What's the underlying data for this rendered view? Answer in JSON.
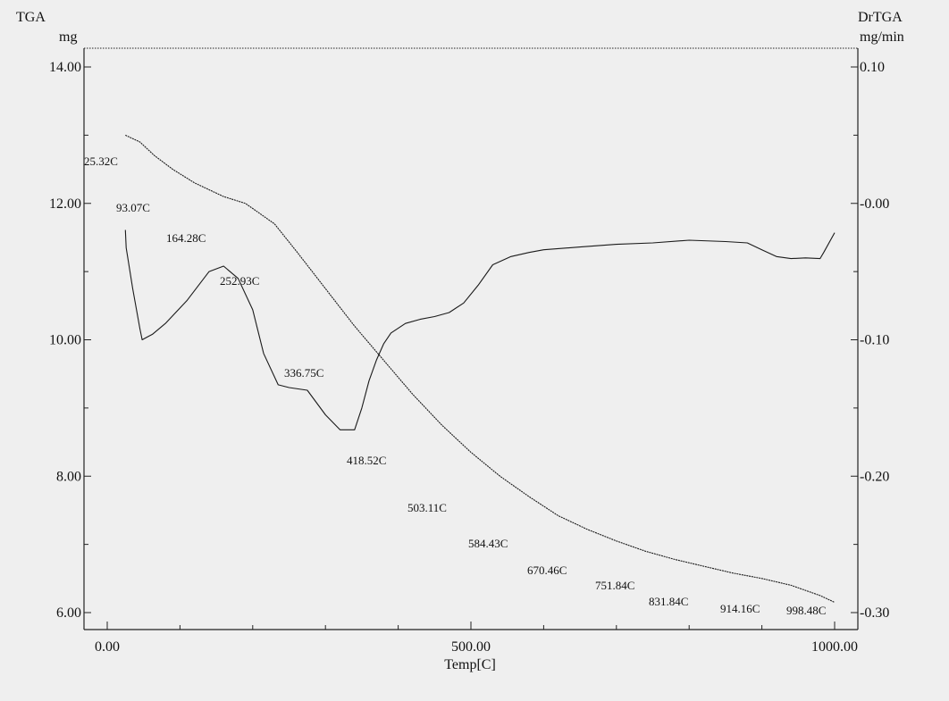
{
  "chart_data": {
    "type": "line",
    "left_axis": {
      "title": "TGA",
      "unit": "mg",
      "ticks": [
        "14.00",
        "12.00",
        "10.00",
        "8.00",
        "6.00"
      ],
      "ylim": [
        6,
        14
      ]
    },
    "right_axis": {
      "title": "DrTGA",
      "unit": "mg/min",
      "ticks": [
        "0.10",
        "-0.00",
        "-0.10",
        "-0.20",
        "-0.30"
      ],
      "ylim": [
        -0.3,
        0.1
      ]
    },
    "x_axis": {
      "label": "Temp[C]",
      "ticks": [
        "0.00",
        "500.00",
        "1000.00"
      ],
      "xlim": [
        0,
        1000
      ]
    },
    "series": [
      {
        "axis": "left",
        "x": [
          25,
          45,
          65,
          90,
          120,
          160,
          190,
          210,
          230,
          260,
          300,
          340,
          380,
          420,
          460,
          500,
          540,
          580,
          620,
          660,
          700,
          740,
          780,
          820,
          860,
          900,
          940,
          980,
          1000
        ],
        "y": [
          13.0,
          12.9,
          12.7,
          12.5,
          12.3,
          12.1,
          12.0,
          11.85,
          11.7,
          11.3,
          10.75,
          10.2,
          9.7,
          9.2,
          8.75,
          8.35,
          8.0,
          7.7,
          7.42,
          7.22,
          7.05,
          6.9,
          6.78,
          6.68,
          6.58,
          6.5,
          6.4,
          6.25,
          6.15
        ]
      },
      {
        "axis": "right",
        "x": [
          25,
          26,
          35,
          45,
          48,
          55,
          62,
          80,
          110,
          140,
          160,
          180,
          200,
          215,
          235,
          250,
          275,
          300,
          320,
          340,
          350,
          360,
          370,
          380,
          390,
          410,
          430,
          450,
          470,
          490,
          510,
          530,
          555,
          580,
          600,
          650,
          700,
          750,
          800,
          850,
          880,
          900,
          920,
          940,
          960,
          980,
          985,
          1000
        ],
        "y": [
          -0.0195,
          -0.0325,
          -0.0625,
          -0.092,
          -0.1,
          -0.098,
          -0.096,
          -0.088,
          -0.071,
          -0.05,
          -0.046,
          -0.055,
          -0.078,
          -0.11,
          -0.133,
          -0.135,
          -0.137,
          -0.155,
          -0.166,
          -0.166,
          -0.15,
          -0.13,
          -0.115,
          -0.103,
          -0.095,
          -0.088,
          -0.085,
          -0.083,
          -0.08,
          -0.073,
          -0.06,
          -0.045,
          -0.039,
          -0.036,
          -0.034,
          -0.032,
          -0.03,
          -0.029,
          -0.027,
          -0.028,
          -0.029,
          -0.034,
          -0.039,
          -0.0405,
          -0.04,
          -0.0405,
          -0.036,
          -0.0215
        ]
      }
    ],
    "annotations": [
      "25.32C",
      "93.07C",
      "164.28C",
      "252.93C",
      "336.75C",
      "418.52C",
      "503.11C",
      "584.43C",
      "670.46C",
      "751.84C",
      "831.84C",
      "914.16C",
      "998.48C"
    ],
    "grid": false
  }
}
